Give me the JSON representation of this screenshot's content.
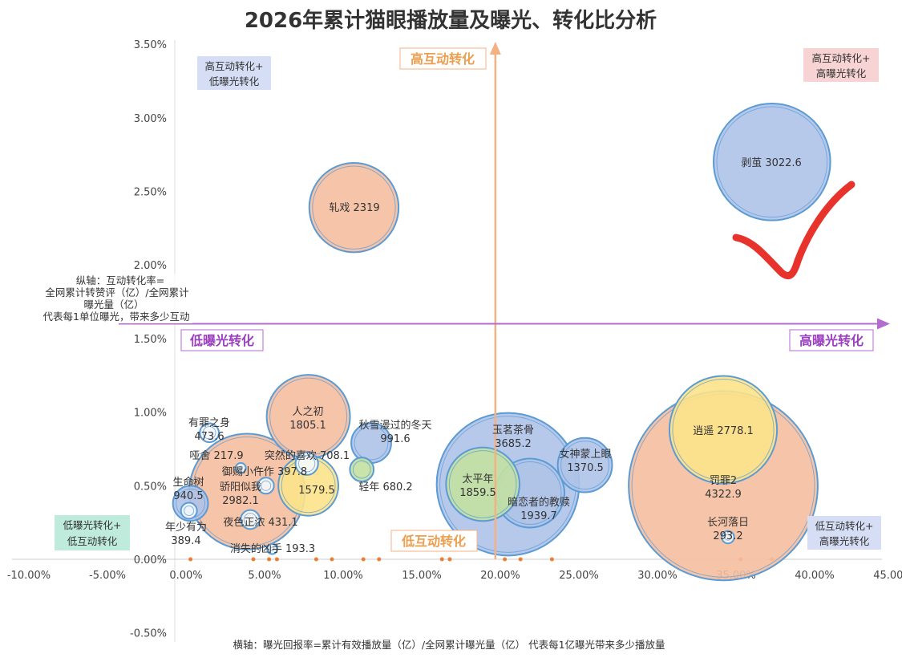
{
  "chart_data": {
    "type": "bubble",
    "title": "2026年累计猫眼播放量及曝光、转化比分析",
    "xlabel": "横轴：曝光回报率=累计有效播放量（亿）/全网累计曝光量（亿）   代表每1亿曝光带来多少播放量",
    "ylabel_lines": [
      "纵轴：互动转化率=",
      "全网累计转赞评（亿）/全网累计",
      "曝光量（亿）",
      "代表每1单位曝光，带来多少互动"
    ],
    "xlim": [
      -10,
      45
    ],
    "ylim": [
      -0.5,
      3.5
    ],
    "x_unit": "%",
    "y_unit": "%",
    "x_ticks": [
      "-10.00%",
      "-5.00%",
      "0.00%",
      "5.00%",
      "10.00%",
      "15.00%",
      "20.00%",
      "25.00%",
      "30.00%",
      "35.00%",
      "40.00%",
      "45.00%"
    ],
    "y_ticks": [
      "-0.50%",
      "0.00%",
      "0.50%",
      "1.00%",
      "1.50%",
      "2.00%",
      "2.50%",
      "3.00%",
      "3.50%"
    ],
    "grid": false,
    "colors": {
      "salmon": "#F5BE9E",
      "blue": "#AFC3E8",
      "yellow": "#FCE38A",
      "green": "#C3E0A2",
      "white": "#F4F8FC",
      "stroke": "#5B9BD5"
    },
    "bubbles": [
      {
        "name": "罚罪2",
        "value": "4322.9",
        "x": 34.9,
        "y": 0.5,
        "size": 139,
        "color": "salmon"
      },
      {
        "name": "玉茗茶骨",
        "value": "3685.2",
        "x": 21.2,
        "y": 0.51,
        "size": 79,
        "color": "blue"
      },
      {
        "name": "剥茧",
        "value": "3022.6",
        "x": 38.0,
        "y": 2.7,
        "size": 53,
        "color": "blue"
      },
      {
        "name": "骄阳似我",
        "value": "2982.1",
        "x": 4.6,
        "y": 0.46,
        "size": 52,
        "color": "salmon"
      },
      {
        "name": "逍遥",
        "value": "2778.1",
        "x": 34.9,
        "y": 0.88,
        "size": 45,
        "color": "yellow"
      },
      {
        "name": "轧戏",
        "value": "2319",
        "x": 11.4,
        "y": 2.39,
        "size": 31,
        "color": "salmon"
      },
      {
        "name": "人之初",
        "value": "1805.1",
        "x": 8.5,
        "y": 0.97,
        "size": 27,
        "color": "salmon"
      },
      {
        "name": "暗恋者的教赎",
        "value": "1939.7",
        "x": 22.6,
        "y": 0.45,
        "size": 18.5,
        "color": "blue"
      },
      {
        "name": "太平年",
        "value": "1859.5",
        "x": 19.6,
        "y": 0.51,
        "size": 21,
        "color": "green"
      },
      {
        "name": "",
        "value": "1579.5",
        "x": 8.5,
        "y": 0.5,
        "size": 14,
        "color": "yellow"
      },
      {
        "name": "女神蒙上眼",
        "value": "1370.5",
        "x": 26.1,
        "y": 0.64,
        "size": 11.5,
        "color": "blue"
      },
      {
        "name": "秋雪漫过的冬天",
        "value": "991.6",
        "x": 12.5,
        "y": 0.79,
        "size": 6.2,
        "color": "blue"
      },
      {
        "name": "生命树",
        "value": "940.5",
        "x": 1.0,
        "y": 0.38,
        "size": 4.8,
        "color": "blue"
      },
      {
        "name": "突然的喜欢",
        "value": "708.1",
        "x": 8.4,
        "y": 0.65,
        "size": 2,
        "color": "white"
      },
      {
        "name": "轻年",
        "value": "680.2",
        "x": 11.9,
        "y": 0.61,
        "size": 2.2,
        "color": "green"
      },
      {
        "name": "有罪之身",
        "value": "473.6",
        "x": 2.2,
        "y": 0.86,
        "size": 1.4,
        "color": "white"
      },
      {
        "name": "夜色正浓",
        "value": "431.1",
        "x": 4.8,
        "y": 0.27,
        "size": 1.4,
        "color": "white"
      },
      {
        "name": "御赐小仵作",
        "value": "397.8",
        "x": 5.8,
        "y": 0.5,
        "size": 1,
        "color": "white"
      },
      {
        "name": "年少有为",
        "value": "389.4",
        "x": 0.9,
        "y": 0.33,
        "size": 1,
        "color": "white"
      },
      {
        "name": "长河落日",
        "value": "293.2",
        "x": 35.2,
        "y": 0.15,
        "size": 0.6,
        "color": "white"
      },
      {
        "name": "哑舍",
        "value": "217.9",
        "x": 4.2,
        "y": 0.62,
        "size": 0.4,
        "color": "white"
      },
      {
        "name": "消失的凶手",
        "value": "193.3",
        "x": 6.2,
        "y": 0.07,
        "size": 0.4,
        "color": "white"
      }
    ],
    "zero_markers_x": [
      1,
      5,
      6,
      6.5,
      9,
      10,
      12,
      13,
      17,
      17.5,
      21,
      22,
      24,
      36,
      38
    ],
    "vertical_divider_x": 20.4,
    "horizontal_divider_y": 1.6,
    "annotations": {
      "top_center": "高互动转化",
      "bottom_center": "低互动转化",
      "left_middle": "低曝光转化",
      "right_middle": "高曝光转化",
      "top_left": [
        "高互动转化+",
        "低曝光转化"
      ],
      "top_right": [
        "高互动转化+",
        "高曝光转化"
      ],
      "bottom_left": [
        "低曝光转化+",
        "低互动转化"
      ],
      "bottom_right": [
        "低互动转化+",
        "高曝光转化"
      ]
    }
  }
}
